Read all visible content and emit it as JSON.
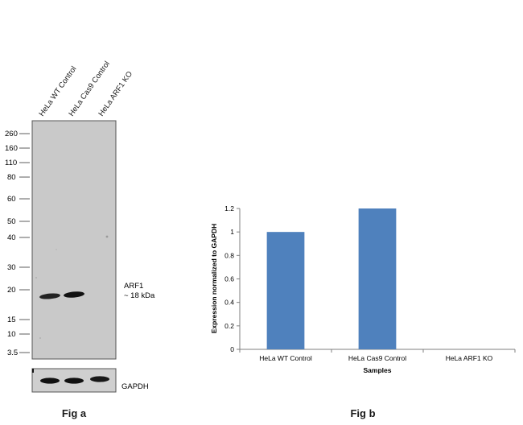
{
  "fig_a": {
    "caption": "Fig a",
    "lane_labels": [
      "HeLa WT Control",
      "HeLa Cas9 Control",
      "HeLa ARF1  KO"
    ],
    "mw_markers": [
      "260",
      "160",
      "110",
      "80",
      "60",
      "50",
      "40",
      "30",
      "20",
      "15",
      "10",
      "3.5"
    ],
    "band_label_line1": "ARF1",
    "band_label_line2": "~ 18 kDa",
    "loading_control_label": "GAPDH",
    "band_intensity": [
      0.85,
      1.0,
      0.0
    ],
    "gapdh_intensity": [
      1.0,
      1.0,
      0.95
    ],
    "colors": {
      "membrane": "#c9c9c9",
      "band": "#111111"
    }
  },
  "chart_data": {
    "type": "bar",
    "title": "",
    "caption": "Fig b",
    "categories": [
      "HeLa WT Control",
      "HeLa Cas9 Control",
      "HeLa ARF1 KO"
    ],
    "values": [
      1.0,
      1.2,
      0.0
    ],
    "xlabel": "Samples",
    "ylabel": "Expression  normalized to GAPDH",
    "ylim": [
      0,
      1.2
    ],
    "yticks": [
      "0",
      "0.2",
      "0.4",
      "0.6",
      "0.8",
      "1",
      "1.2"
    ],
    "grid": false,
    "legend": "none",
    "colors": {
      "bar": "#4f81bd",
      "axis": "#7f7f7f"
    }
  }
}
